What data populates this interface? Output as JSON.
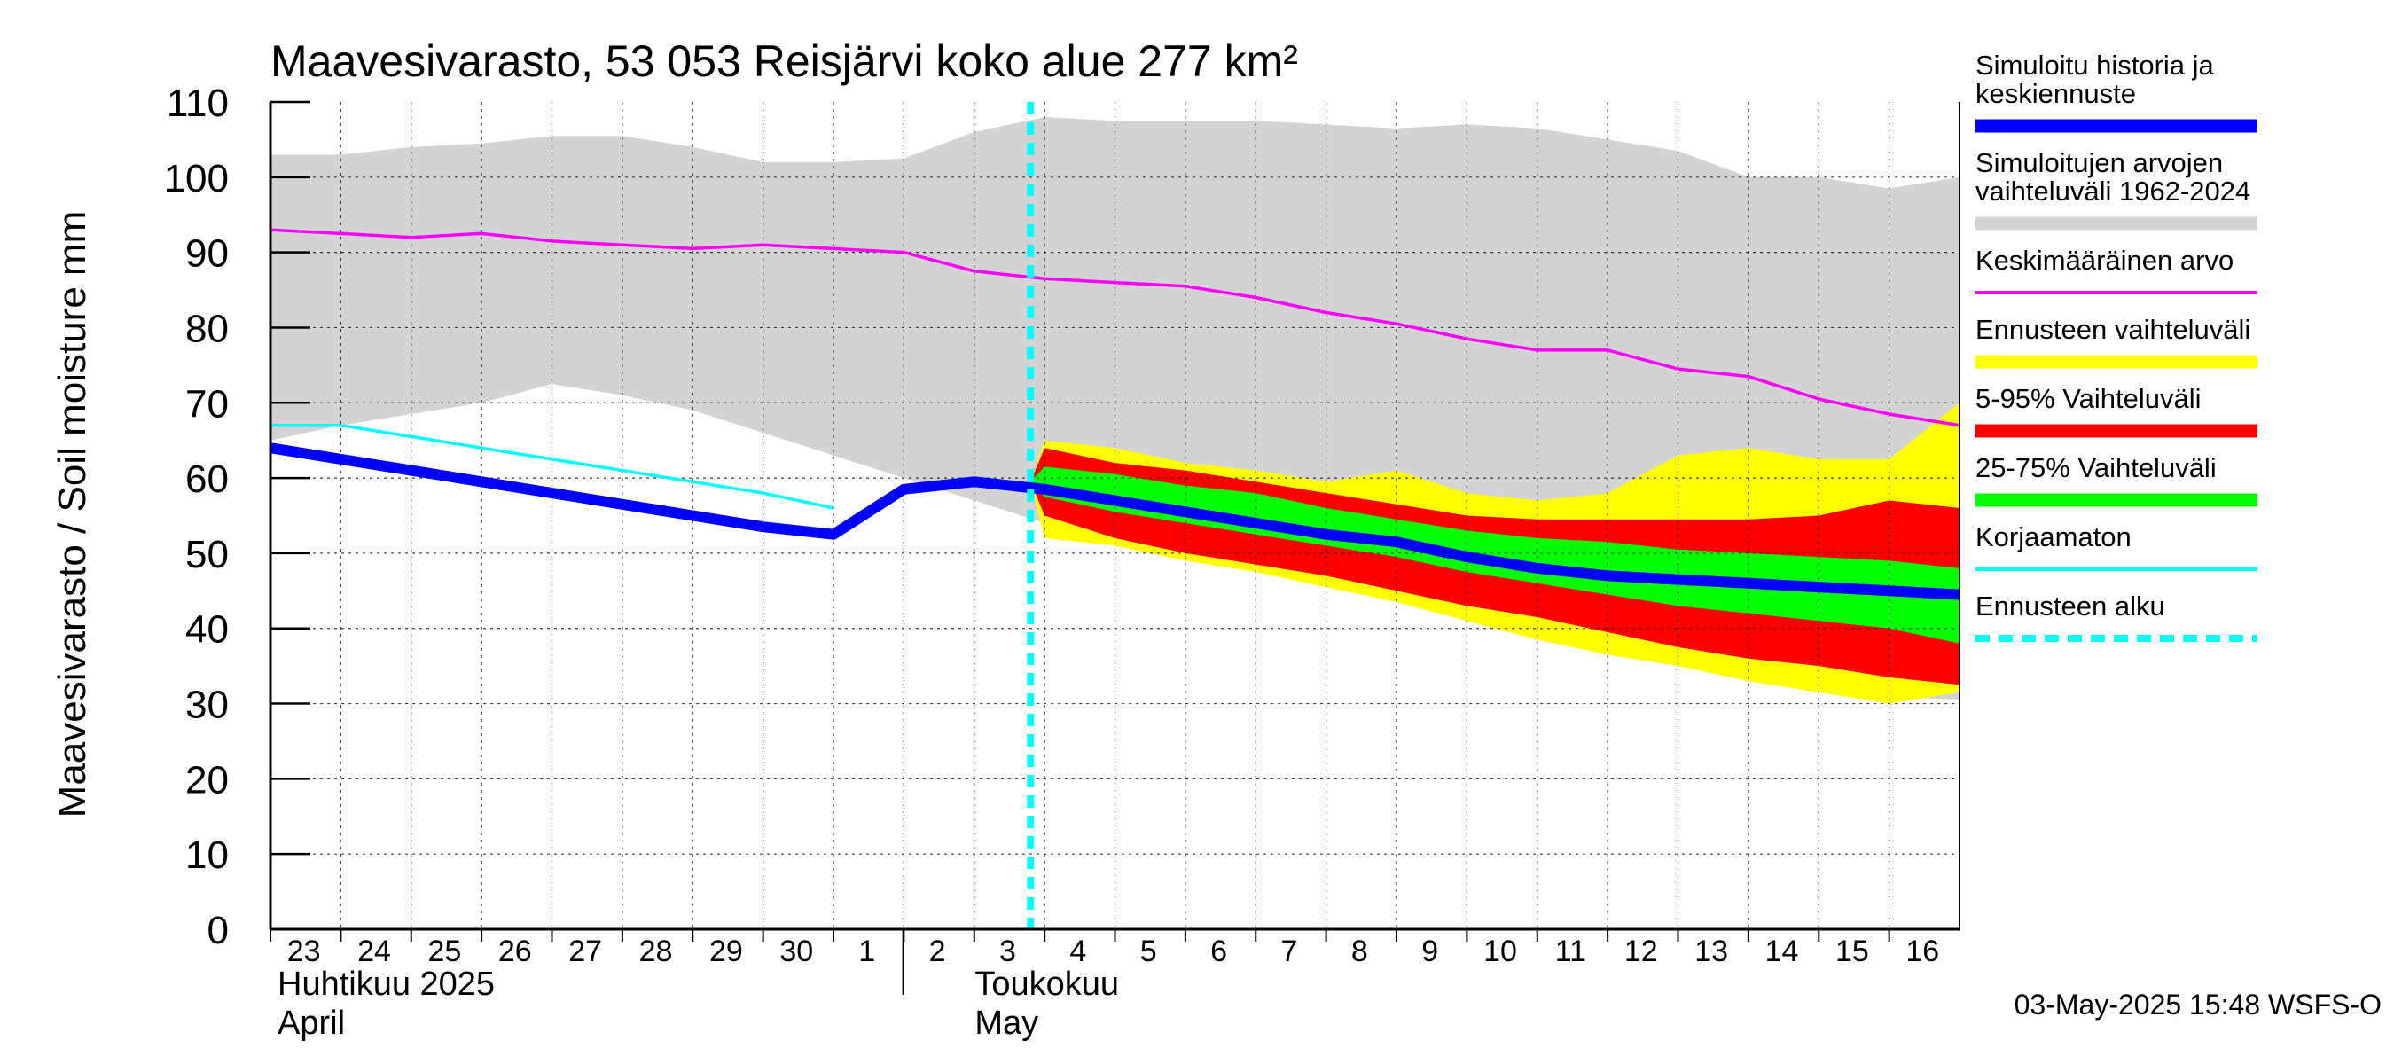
{
  "chart_data": {
    "type": "area",
    "title": "Maavesivarasto, 53 053 Reisjärvi koko alue 277 km²",
    "ylabel": "Maavesivarasto / Soil moisture   mm",
    "ylim": [
      0,
      110
    ],
    "yticks": [
      "0",
      "10",
      "20",
      "30",
      "40",
      "50",
      "60",
      "70",
      "80",
      "90",
      "100",
      "110"
    ],
    "grid": true,
    "legend_position": "right",
    "x_days": [
      "23",
      "24",
      "25",
      "26",
      "27",
      "28",
      "29",
      "30",
      "1",
      "2",
      "3",
      "4",
      "5",
      "6",
      "7",
      "8",
      "9",
      "10",
      "11",
      "12",
      "13",
      "14",
      "15",
      "16"
    ],
    "x_months": [
      {
        "line1": "Huhtikuu  2025",
        "line2": "April",
        "day_index": 0
      },
      {
        "line1": "Toukokuu",
        "line2": "May",
        "day_index": 9
      }
    ],
    "forecast_start_day_index": 10.8,
    "series": [
      {
        "name": "Simuloitujen arvojen vaihteluväli 1962-2024",
        "kind": "band",
        "color": "#d3d3d3",
        "x": [
          0,
          1,
          2,
          3,
          4,
          5,
          6,
          7,
          8,
          9,
          10,
          11,
          12,
          13,
          14,
          15,
          16,
          17,
          18,
          19,
          20,
          21,
          22,
          23,
          24
        ],
        "upper": [
          103,
          103,
          104,
          104.5,
          105.5,
          105.5,
          104,
          102,
          102,
          102.5,
          106,
          108,
          107.5,
          107.5,
          107.5,
          107,
          106.5,
          107,
          106.5,
          105,
          103.5,
          100,
          100,
          98.5,
          100
        ],
        "lower": [
          65,
          67,
          68.5,
          70,
          72.5,
          71,
          69,
          66,
          63,
          60,
          57,
          54,
          52,
          50,
          48.5,
          46.5,
          44,
          41.5,
          39.5,
          38,
          36,
          33,
          32,
          31,
          30.5
        ]
      },
      {
        "name": "Ennusteen vaihteluväli",
        "kind": "band",
        "color": "#ffff00",
        "x": [
          10.8,
          11,
          12,
          13,
          14,
          15,
          16,
          17,
          18,
          19,
          20,
          21,
          22,
          23,
          24
        ],
        "upper": [
          59.5,
          65,
          64,
          62,
          61,
          59.5,
          61,
          58,
          57,
          58,
          63,
          64,
          62.5,
          62.5,
          70
        ],
        "lower": [
          59.5,
          52,
          51,
          49,
          47.5,
          45.5,
          43.5,
          41,
          38.5,
          36.5,
          35,
          33,
          31.5,
          30,
          31.5
        ]
      },
      {
        "name": "5-95% Vaihteluväli",
        "kind": "band",
        "color": "#ff0000",
        "x": [
          10.8,
          11,
          12,
          13,
          14,
          15,
          16,
          17,
          18,
          19,
          20,
          21,
          22,
          23,
          24
        ],
        "upper": [
          59.5,
          64,
          62,
          61,
          59.5,
          58,
          56.5,
          55,
          54.5,
          54.5,
          54.5,
          54.5,
          55,
          57,
          56
        ],
        "lower": [
          59.5,
          55,
          52,
          50,
          48.5,
          47,
          45,
          43,
          41.5,
          39.5,
          37.5,
          36,
          35,
          33.5,
          32.5
        ]
      },
      {
        "name": "25-75% Vaihteluväli",
        "kind": "band",
        "color": "#00ff00",
        "x": [
          10.8,
          11,
          12,
          13,
          14,
          15,
          16,
          17,
          18,
          19,
          20,
          21,
          22,
          23,
          24
        ],
        "upper": [
          59.5,
          61.5,
          60.5,
          59,
          58,
          56,
          54.5,
          53,
          52,
          51.5,
          50.5,
          50,
          49.5,
          49,
          48
        ],
        "lower": [
          59.5,
          57.5,
          55.5,
          54,
          52.5,
          51,
          49.5,
          47.5,
          46,
          44.5,
          43,
          42,
          41,
          40,
          38
        ]
      },
      {
        "name": "Keskimääräinen arvo",
        "kind": "line",
        "color": "#ff00ff",
        "x": [
          0,
          1,
          2,
          3,
          4,
          5,
          6,
          7,
          8,
          9,
          10,
          11,
          12,
          13,
          14,
          15,
          16,
          17,
          18,
          19,
          20,
          21,
          22,
          23,
          24
        ],
        "y": [
          93,
          92.5,
          92,
          92.5,
          91.5,
          91,
          90.5,
          91,
          90.5,
          90,
          87.5,
          86.5,
          86,
          85.5,
          84,
          82,
          80.5,
          78.5,
          77,
          77,
          74.5,
          73.5,
          70.5,
          68.5,
          67
        ]
      },
      {
        "name": "Korjaamaton",
        "kind": "line",
        "color": "#00ffff",
        "x": [
          0,
          1,
          2,
          3,
          4,
          5,
          6,
          7,
          8
        ],
        "y": [
          67,
          67,
          65.5,
          64,
          62.5,
          61,
          59.5,
          58,
          56
        ]
      },
      {
        "name": "Simuloitu historia ja keskiennuste",
        "kind": "line",
        "color": "#0000ff",
        "x": [
          0,
          1,
          2,
          3,
          4,
          5,
          6,
          7,
          8,
          9,
          10,
          11,
          12,
          13,
          14,
          15,
          16,
          17,
          18,
          19,
          20,
          21,
          22,
          23,
          24
        ],
        "y": [
          64,
          62.5,
          61,
          59.5,
          58,
          56.5,
          55,
          53.5,
          52.5,
          58.5,
          59.5,
          58.5,
          57,
          55.5,
          54,
          52.5,
          51.5,
          49.5,
          48,
          47,
          46.5,
          46,
          45.5,
          45,
          44.5
        ]
      }
    ],
    "legend": [
      {
        "label": "Simuloitu historia ja keskiennuste",
        "color": "#0000ff",
        "style": "thick"
      },
      {
        "label": "Simuloitujen arvojen vaihteluväli 1962-2024",
        "color": "#d3d3d3",
        "style": "thick"
      },
      {
        "label": "Keskimääräinen arvo",
        "color": "#ff00ff",
        "style": "thin"
      },
      {
        "label": "Ennusteen vaihteluväli",
        "color": "#ffff00",
        "style": "thick"
      },
      {
        "label": "5-95% Vaihteluväli",
        "color": "#ff0000",
        "style": "thick"
      },
      {
        "label": "25-75% Vaihteluväli",
        "color": "#00ff00",
        "style": "thick"
      },
      {
        "label": "Korjaamaton",
        "color": "#00ffff",
        "style": "thin"
      },
      {
        "label": "Ennusteen alku",
        "color": "#00ffff",
        "style": "dashed"
      }
    ],
    "footer": "03-May-2025 15:48 WSFS-O"
  }
}
